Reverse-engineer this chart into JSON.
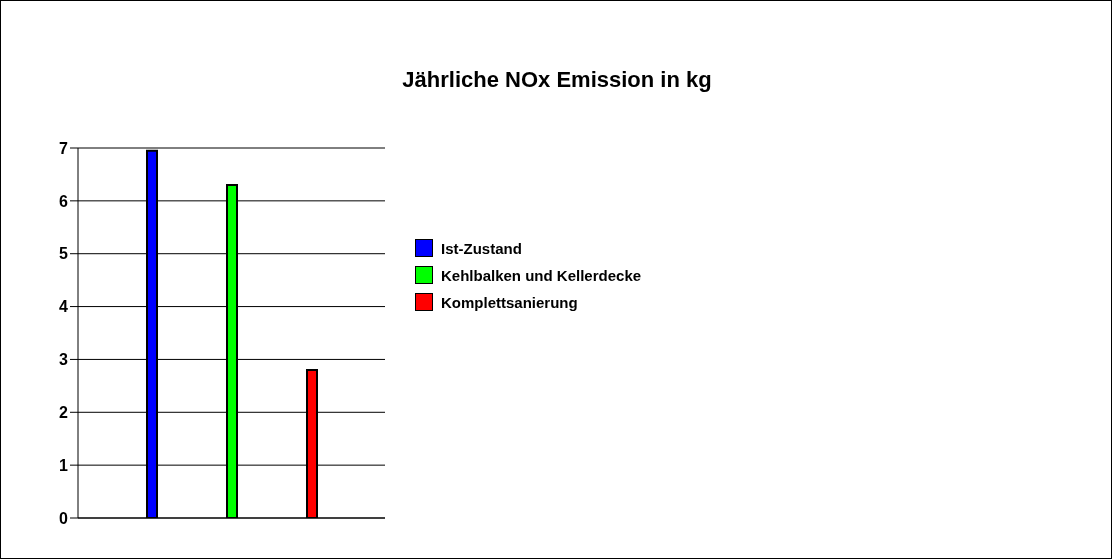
{
  "chart_data": {
    "type": "bar",
    "title": "Jährliche NOx Emission in kg",
    "categories": [
      null
    ],
    "series": [
      {
        "name": "Ist-Zustand",
        "color": "#0000ff",
        "values": [
          6.95
        ]
      },
      {
        "name": "Kehlbalken und Kellerdecke",
        "color": "#00ff00",
        "values": [
          6.3
        ]
      },
      {
        "name": "Komplettsanierung",
        "color": "#ff0000",
        "values": [
          2.8
        ]
      }
    ],
    "ylim": [
      0,
      7
    ],
    "yticks": [
      0,
      1,
      2,
      3,
      4,
      5,
      6,
      7
    ],
    "grid": "y",
    "legend": "right"
  }
}
